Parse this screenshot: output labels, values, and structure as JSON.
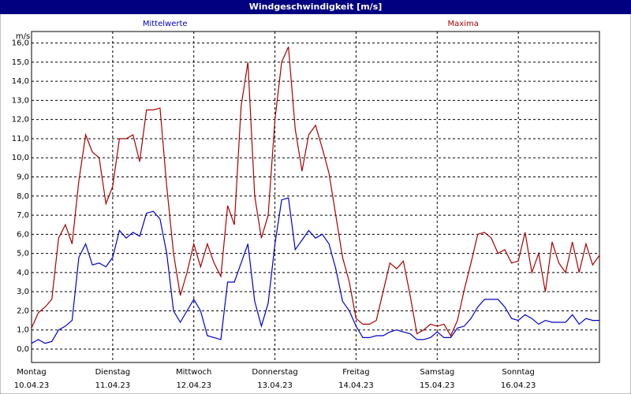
{
  "chart_data": {
    "type": "line",
    "title": "Windgeschwindigkeit [m/s]",
    "y_label": "m/s",
    "x": [
      0,
      2,
      4,
      6,
      8,
      10,
      12,
      14,
      16,
      18,
      20,
      22,
      24,
      26,
      28,
      30,
      32,
      34,
      36,
      38,
      40,
      42,
      44,
      46,
      48,
      50,
      52,
      54,
      56,
      58,
      60,
      62,
      64,
      66,
      68,
      70,
      72,
      74,
      76,
      78,
      80,
      82,
      84,
      86,
      88,
      90,
      92,
      94,
      96,
      98,
      100,
      102,
      104,
      106,
      108,
      110,
      112,
      114,
      116,
      118,
      120,
      122,
      124,
      126,
      128,
      130,
      132,
      134,
      136,
      138,
      140,
      142,
      144,
      146,
      148,
      150,
      152,
      154,
      156,
      158,
      160,
      162,
      164,
      166,
      168
    ],
    "xlim": [
      0,
      168
    ],
    "xticks": [
      {
        "value": 0,
        "label": "Montag",
        "date": "10.04.23"
      },
      {
        "value": 24,
        "label": "Dienstag",
        "date": "11.04.23"
      },
      {
        "value": 48,
        "label": "Mittwoch",
        "date": "12.04.23"
      },
      {
        "value": 72,
        "label": "Donnerstag",
        "date": "13.04.23"
      },
      {
        "value": 96,
        "label": "Freitag",
        "date": "14.04.23"
      },
      {
        "value": 120,
        "label": "Samstag",
        "date": "15.04.23"
      },
      {
        "value": 144,
        "label": "Sonntag",
        "date": "16.04.23"
      }
    ],
    "ylim": [
      -0.7,
      16.6
    ],
    "yticks": [
      {
        "value": 0,
        "label": "0,0"
      },
      {
        "value": 1,
        "label": "1,0"
      },
      {
        "value": 2,
        "label": "2,0"
      },
      {
        "value": 3,
        "label": "3,0"
      },
      {
        "value": 4,
        "label": "4,0"
      },
      {
        "value": 5,
        "label": "5,0"
      },
      {
        "value": 6,
        "label": "6,0"
      },
      {
        "value": 7,
        "label": "7,0"
      },
      {
        "value": 8,
        "label": "8,0"
      },
      {
        "value": 9,
        "label": "9,0"
      },
      {
        "value": 10,
        "label": "10,0"
      },
      {
        "value": 11,
        "label": "11,0"
      },
      {
        "value": 12,
        "label": "12,0"
      },
      {
        "value": 13,
        "label": "13,0"
      },
      {
        "value": 14,
        "label": "14,0"
      },
      {
        "value": 15,
        "label": "15,0"
      },
      {
        "value": 16,
        "label": "16,0"
      }
    ],
    "grid": true,
    "series": [
      {
        "name": "Mittelwerte",
        "color": "#0000c8",
        "values": [
          0.3,
          0.5,
          0.3,
          0.4,
          1.0,
          1.2,
          1.5,
          4.8,
          5.5,
          4.4,
          4.5,
          4.3,
          4.8,
          6.2,
          5.8,
          6.1,
          5.9,
          7.1,
          7.2,
          6.8,
          5.0,
          2.0,
          1.4,
          2.0,
          2.6,
          2.0,
          0.7,
          0.6,
          0.5,
          3.5,
          3.5,
          4.5,
          5.5,
          2.5,
          1.2,
          2.4,
          5.5,
          7.8,
          7.9,
          5.2,
          5.7,
          6.2,
          5.8,
          6.0,
          5.5,
          4.2,
          2.5,
          2.0,
          1.2,
          0.6,
          0.6,
          0.7,
          0.7,
          0.9,
          1.0,
          0.9,
          0.8,
          0.5,
          0.5,
          0.6,
          0.9,
          0.6,
          0.6,
          1.1,
          1.2,
          1.6,
          2.2,
          2.6,
          2.6,
          2.6,
          2.2,
          1.6,
          1.5,
          1.8,
          1.6,
          1.3,
          1.5,
          1.4,
          1.4,
          1.4,
          1.8,
          1.3,
          1.6,
          1.5,
          1.5
        ]
      },
      {
        "name": "Maxima",
        "color": "#a80000",
        "values": [
          1.1,
          1.9,
          2.2,
          2.6,
          5.8,
          6.5,
          5.5,
          8.8,
          11.2,
          10.3,
          10.0,
          7.6,
          8.5,
          11.0,
          11.0,
          11.2,
          9.8,
          12.5,
          12.5,
          12.6,
          8.5,
          5.0,
          2.8,
          4.0,
          5.5,
          4.3,
          5.5,
          4.5,
          3.8,
          7.5,
          6.5,
          12.7,
          15.0,
          8.0,
          5.8,
          7.0,
          12.0,
          15.0,
          15.8,
          11.5,
          9.3,
          11.2,
          11.7,
          10.5,
          9.2,
          7.0,
          4.8,
          3.5,
          1.6,
          1.3,
          1.3,
          1.5,
          3.0,
          4.5,
          4.2,
          4.6,
          2.8,
          0.8,
          1.0,
          1.3,
          1.2,
          1.3,
          0.7,
          1.5,
          3.1,
          4.5,
          6.0,
          6.1,
          5.8,
          5.0,
          5.2,
          4.5,
          4.6,
          6.1,
          4.0,
          5.0,
          3.0,
          5.6,
          4.5,
          4.0,
          5.6,
          4.0,
          5.5,
          4.4,
          4.9
        ]
      }
    ]
  }
}
